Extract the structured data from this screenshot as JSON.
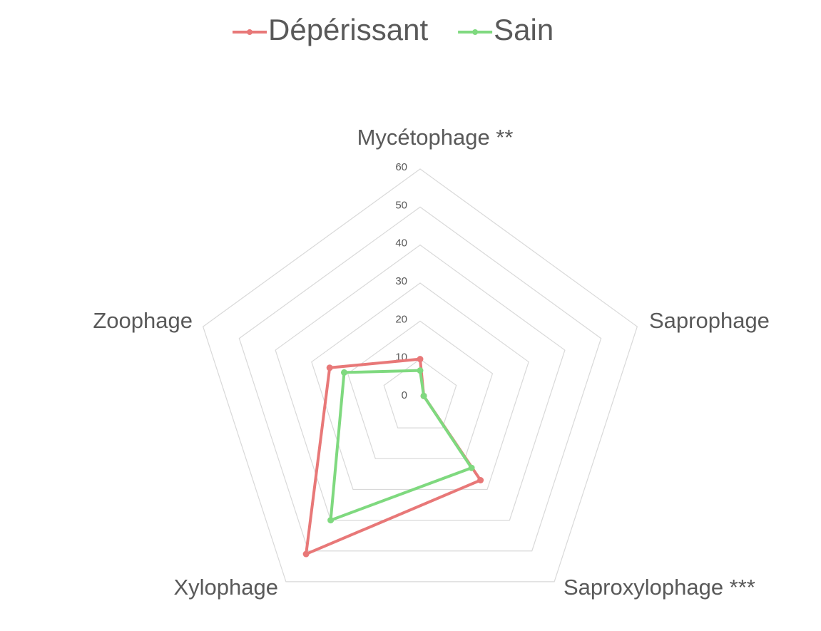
{
  "chart_data": {
    "type": "radar",
    "categories": [
      "Mycétophage **",
      "Saprophage",
      "Saproxylophage ***",
      "Xylophage",
      "Zoophage"
    ],
    "series": [
      {
        "name": "Dépérissant",
        "color": "#e87878",
        "values": [
          10,
          1,
          27,
          51,
          25
        ]
      },
      {
        "name": "Sain",
        "color": "#7fd97f",
        "values": [
          7,
          1,
          23,
          40,
          21
        ]
      }
    ],
    "ylim": [
      0,
      60
    ],
    "yticks": [
      0,
      10,
      20,
      30,
      40,
      50,
      60
    ],
    "grid": true,
    "legend": "top"
  }
}
